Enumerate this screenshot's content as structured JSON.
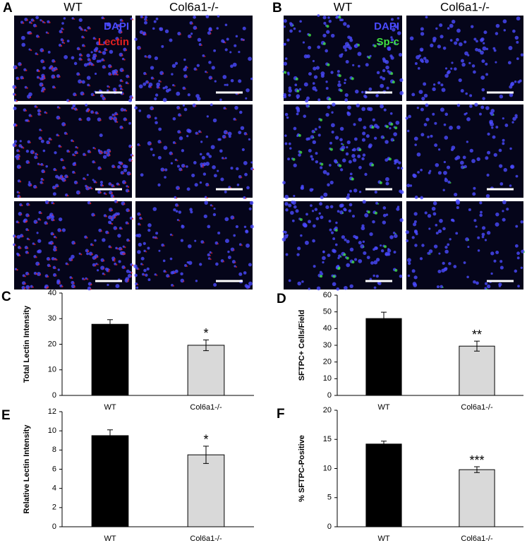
{
  "figure_panels": [
    {
      "panel": "A",
      "columns": [
        "WT",
        "Col6a1-/-"
      ],
      "stains": [
        "DAPI",
        "Lectin"
      ],
      "stain_colors": [
        "#4a4aff",
        "#e02020"
      ]
    },
    {
      "panel": "B",
      "columns": [
        "WT",
        "Col6a1-/-"
      ],
      "stains": [
        "DAPI",
        "Sp-c"
      ],
      "stain_colors": [
        "#4a4aff",
        "#40e040"
      ]
    }
  ],
  "chart_data": [
    {
      "type": "bar",
      "panel": "C",
      "ylabel": "Total Lectin Intensity",
      "categories": [
        "WT",
        "Col6a1-/-"
      ],
      "values": [
        27.8,
        19.6
      ],
      "errors": [
        1.8,
        2.1
      ],
      "colors": [
        "#000000",
        "#d9d9d9"
      ],
      "annotation": "*",
      "ylim": [
        0,
        40
      ],
      "yticks": [
        0,
        10,
        20,
        30,
        40
      ]
    },
    {
      "type": "bar",
      "panel": "D",
      "ylabel": "SFTPC+ Cells/Field",
      "categories": [
        "WT",
        "Col6a1-/-"
      ],
      "values": [
        46,
        29.5
      ],
      "errors": [
        3.8,
        3
      ],
      "colors": [
        "#000000",
        "#d9d9d9"
      ],
      "annotation": "**",
      "ylim": [
        0,
        60
      ],
      "yticks": [
        0,
        10,
        20,
        30,
        40,
        50,
        60
      ]
    },
    {
      "type": "bar",
      "panel": "E",
      "ylabel": "Relative Lectin Intensity",
      "categories": [
        "WT",
        "Col6a1-/-"
      ],
      "values": [
        9.5,
        7.5
      ],
      "errors": [
        0.6,
        0.9
      ],
      "colors": [
        "#000000",
        "#d9d9d9"
      ],
      "annotation": "*",
      "ylim": [
        0,
        12
      ],
      "yticks": [
        0,
        2,
        4,
        6,
        8,
        10,
        12
      ]
    },
    {
      "type": "bar",
      "panel": "F",
      "ylabel": "% SFTPC-Positive",
      "categories": [
        "WT",
        "Col6a1-/-"
      ],
      "values": [
        14.2,
        9.8
      ],
      "errors": [
        0.5,
        0.5
      ],
      "colors": [
        "#000000",
        "#d9d9d9"
      ],
      "annotation": "***",
      "ylim": [
        0,
        20
      ],
      "yticks": [
        0,
        5,
        10,
        15,
        20
      ]
    }
  ]
}
